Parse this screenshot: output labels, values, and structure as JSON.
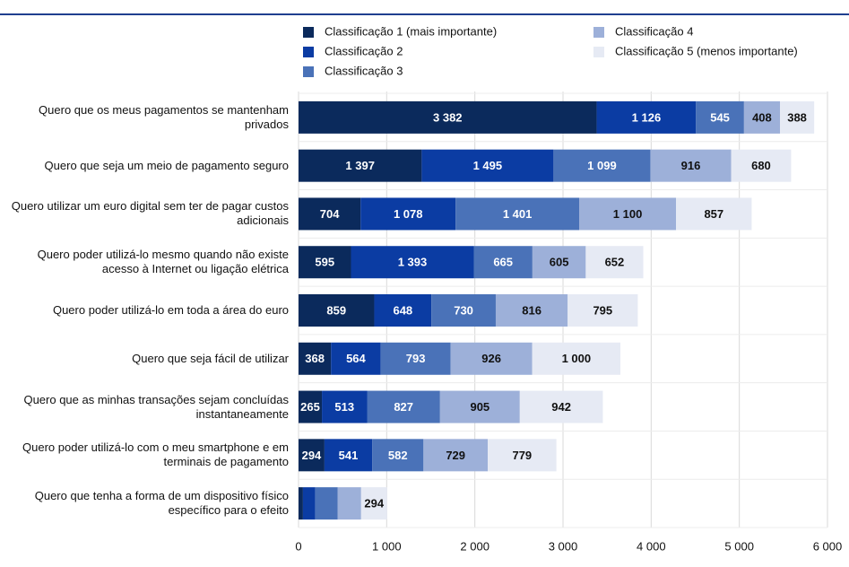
{
  "chart_data": {
    "type": "stacked_barh",
    "categories": [
      "Quero que os meus pagamentos se mantenham privados",
      "Quero que seja um meio de pagamento seguro",
      "Quero utilizar um euro digital sem ter de pagar custos adicionais",
      "Quero poder utilizá-lo mesmo quando não existe acesso à Internet ou ligação elétrica",
      "Quero poder utilizá-lo em toda a área do euro",
      "Quero que seja fácil de utilizar",
      "Quero que as minhas transações sejam concluídas instantaneamente",
      "Quero poder utilizá-lo com o meu smartphone e em terminais de pagamento",
      "Quero que tenha a forma de um dispositivo físico específico para o efeito"
    ],
    "series": [
      {
        "name": "Classificação 1 (mais importante)",
        "color": "#0b2a5c",
        "values": [
          3382,
          1397,
          704,
          595,
          859,
          368,
          265,
          294,
          50
        ],
        "value_labels": [
          "3 382",
          "1 397",
          "704",
          "595",
          "859",
          "368",
          "265",
          "294",
          null
        ]
      },
      {
        "name": "Classificação 2",
        "color": "#0b3ca3",
        "values": [
          1126,
          1495,
          1078,
          1393,
          648,
          564,
          513,
          541,
          140
        ],
        "value_labels": [
          "1 126",
          "1 495",
          "1 078",
          "1 393",
          "648",
          "564",
          "513",
          "541",
          null
        ]
      },
      {
        "name": "Classificação 3",
        "color": "#4a72b8",
        "values": [
          545,
          1099,
          1401,
          665,
          730,
          793,
          827,
          582,
          255
        ],
        "value_labels": [
          "545",
          "1 099",
          "1 401",
          "665",
          "730",
          "793",
          "827",
          "582",
          null
        ]
      },
      {
        "name": "Classificação 4",
        "color": "#9db0d9",
        "values": [
          408,
          916,
          1100,
          605,
          816,
          926,
          905,
          729,
          265
        ],
        "value_labels": [
          "408",
          "916",
          "1 100",
          "605",
          "816",
          "926",
          "905",
          "729",
          null
        ]
      },
      {
        "name": "Classificação 5 (menos importante)",
        "color": "#e6eaf4",
        "values": [
          388,
          680,
          857,
          652,
          795,
          1000,
          942,
          779,
          294
        ],
        "value_labels": [
          "388",
          "680",
          "857",
          "652",
          "795",
          "1 000",
          "942",
          "779",
          "294"
        ]
      }
    ],
    "xlim": [
      0,
      6000
    ],
    "xticks": [
      0,
      {
        "value": 1000,
        "label": "1 000"
      },
      {
        "value": 2000,
        "label": "2 000"
      },
      {
        "value": 3000,
        "label": "3 000"
      },
      {
        "value": 4000,
        "label": "4 000"
      },
      {
        "value": 5000,
        "label": "5 000"
      },
      {
        "value": 6000,
        "label": "6 000"
      }
    ],
    "grid": true
  }
}
